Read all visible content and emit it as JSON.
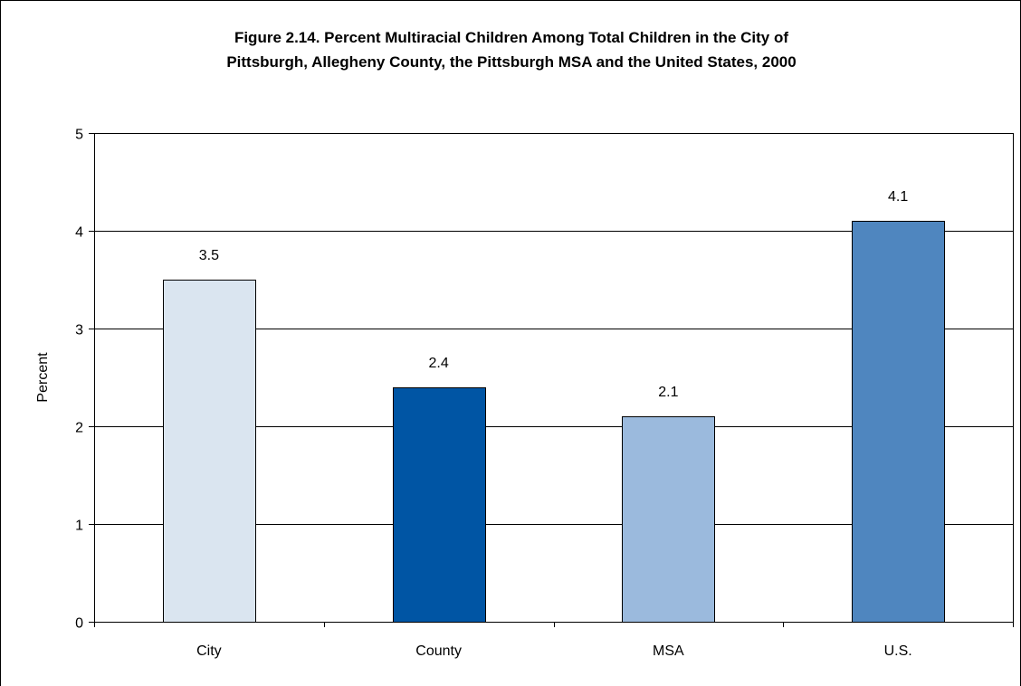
{
  "chart_data": {
    "type": "bar",
    "title_lines": [
      "Figure 2.14. Percent Multiracial Children Among Total Children in the City of",
      "Pittsburgh, Allegheny County, the Pittsburgh MSA and the United States, 2000"
    ],
    "categories": [
      "City",
      "County",
      "MSA",
      "U.S."
    ],
    "values": [
      3.5,
      2.4,
      2.1,
      4.1
    ],
    "data_labels": [
      "3.5",
      "2.4",
      "2.1",
      "4.1"
    ],
    "bar_colors": [
      "#dae5f0",
      "#0055a4",
      "#9bbadd",
      "#4f86bf"
    ],
    "xlabel": "",
    "ylabel": "Percent",
    "ylim": [
      0,
      5
    ],
    "yticks": [
      0,
      1,
      2,
      3,
      4,
      5
    ],
    "ytick_labels": [
      "0",
      "1",
      "2",
      "3",
      "4",
      "5"
    ],
    "grid": true,
    "legend": "none"
  }
}
